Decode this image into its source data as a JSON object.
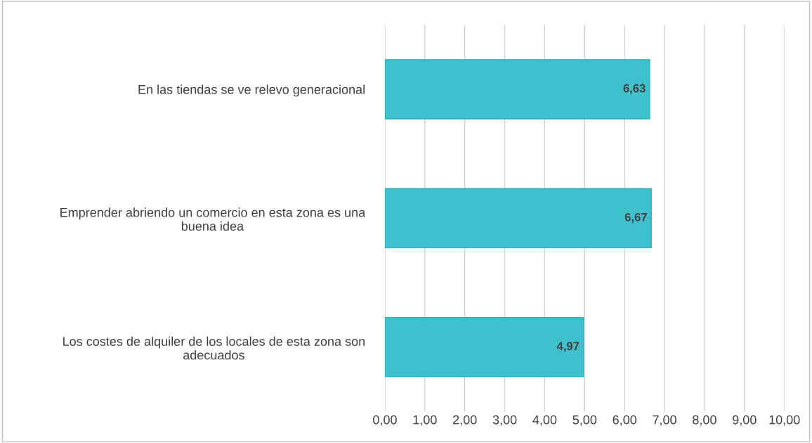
{
  "chart_data": {
    "type": "bar",
    "orientation": "horizontal",
    "categories": [
      "En las tiendas se ve relevo generacional",
      "Emprender abriendo un comercio en esta zona es una\nbuena idea",
      "Los costes de alquiler de los locales de esta zona son\nadecuados"
    ],
    "values": [
      6.63,
      6.67,
      4.97
    ],
    "color": "#3ec1cc",
    "value_labels": [
      "6,63",
      "6,67",
      "4,97"
    ],
    "xlim": [
      0,
      10
    ],
    "xticks": [
      {
        "value": 0,
        "label": "0,00"
      },
      {
        "value": 1,
        "label": "1,00"
      },
      {
        "value": 2,
        "label": "2,00"
      },
      {
        "value": 3,
        "label": "3,00"
      },
      {
        "value": 4,
        "label": "4,00"
      },
      {
        "value": 5,
        "label": "5,00"
      },
      {
        "value": 6,
        "label": "6,00"
      },
      {
        "value": 7,
        "label": "7,00"
      },
      {
        "value": 8,
        "label": "8,00"
      },
      {
        "value": 9,
        "label": "9,00"
      },
      {
        "value": 10,
        "label": "10,00"
      }
    ],
    "grid": "x"
  }
}
